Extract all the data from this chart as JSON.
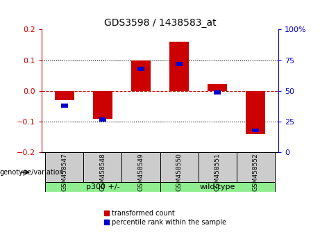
{
  "title": "GDS3598 / 1438583_at",
  "samples": [
    "GSM458547",
    "GSM458548",
    "GSM458549",
    "GSM458550",
    "GSM458551",
    "GSM458552"
  ],
  "red_values": [
    -0.03,
    -0.09,
    0.1,
    0.16,
    0.022,
    -0.14
  ],
  "blue_percentiles": [
    38,
    27,
    68,
    72,
    49,
    18
  ],
  "ylim_left": [
    -0.2,
    0.2
  ],
  "ylim_right": [
    0,
    100
  ],
  "yticks_left": [
    -0.2,
    -0.1,
    0.0,
    0.1,
    0.2
  ],
  "yticks_right": [
    0,
    25,
    50,
    75,
    100
  ],
  "ytick_labels_right": [
    "0",
    "25",
    "50",
    "75",
    "100%"
  ],
  "red_color": "#cc0000",
  "blue_color": "#0000cc",
  "group1_label": "p300 +/-",
  "group2_label": "wild-type",
  "group1_indices": [
    0,
    1,
    2
  ],
  "group2_indices": [
    3,
    4,
    5
  ],
  "group_color": "#90ee90",
  "group_bg_color": "#cccccc",
  "legend_red_label": "transformed count",
  "legend_blue_label": "percentile rank within the sample",
  "genotype_label": "genotype/variation"
}
